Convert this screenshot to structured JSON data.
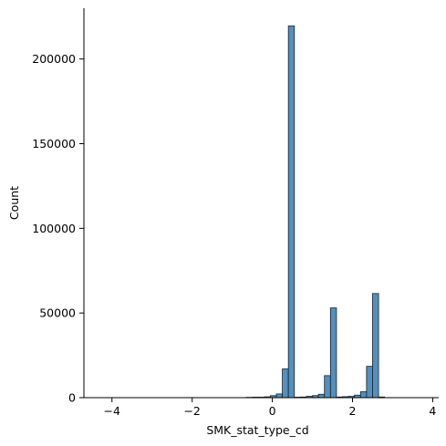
{
  "chart_data": {
    "type": "bar",
    "title": "",
    "xlabel": "SMK_stat_type_cd",
    "ylabel": "Count",
    "xlim": [
      -4.7,
      4.15
    ],
    "ylim": [
      0,
      230000
    ],
    "x_ticks": [
      -4,
      -2,
      0,
      2,
      4
    ],
    "x_tick_labels": [
      "−4",
      "−2",
      "0",
      "2",
      "4"
    ],
    "y_ticks": [
      0,
      50000,
      100000,
      150000,
      200000
    ],
    "y_tick_labels": [
      "0",
      "50000",
      "100000",
      "150000",
      "200000"
    ],
    "bin_width": 0.15,
    "bins": [
      {
        "x0": -0.65,
        "count": 200
      },
      {
        "x0": -0.5,
        "count": 300
      },
      {
        "x0": -0.35,
        "count": 300
      },
      {
        "x0": -0.2,
        "count": 500
      },
      {
        "x0": -0.05,
        "count": 1200
      },
      {
        "x0": 0.1,
        "count": 2200
      },
      {
        "x0": 0.25,
        "count": 17000
      },
      {
        "x0": 0.4,
        "count": 219500
      },
      {
        "x0": 0.55,
        "count": 300
      },
      {
        "x0": 0.7,
        "count": 400
      },
      {
        "x0": 0.85,
        "count": 800
      },
      {
        "x0": 1.0,
        "count": 1200
      },
      {
        "x0": 1.15,
        "count": 2000
      },
      {
        "x0": 1.3,
        "count": 13000
      },
      {
        "x0": 1.45,
        "count": 53000
      },
      {
        "x0": 1.6,
        "count": 400
      },
      {
        "x0": 1.75,
        "count": 600
      },
      {
        "x0": 1.9,
        "count": 800
      },
      {
        "x0": 2.05,
        "count": 1500
      },
      {
        "x0": 2.2,
        "count": 3500
      },
      {
        "x0": 2.35,
        "count": 18500
      },
      {
        "x0": 2.5,
        "count": 61500
      },
      {
        "x0": 2.65,
        "count": 400
      }
    ],
    "bar_color": "#5190c0",
    "edge_color": "#1f1f1f",
    "grid": false,
    "spines": [
      "left",
      "bottom"
    ]
  }
}
